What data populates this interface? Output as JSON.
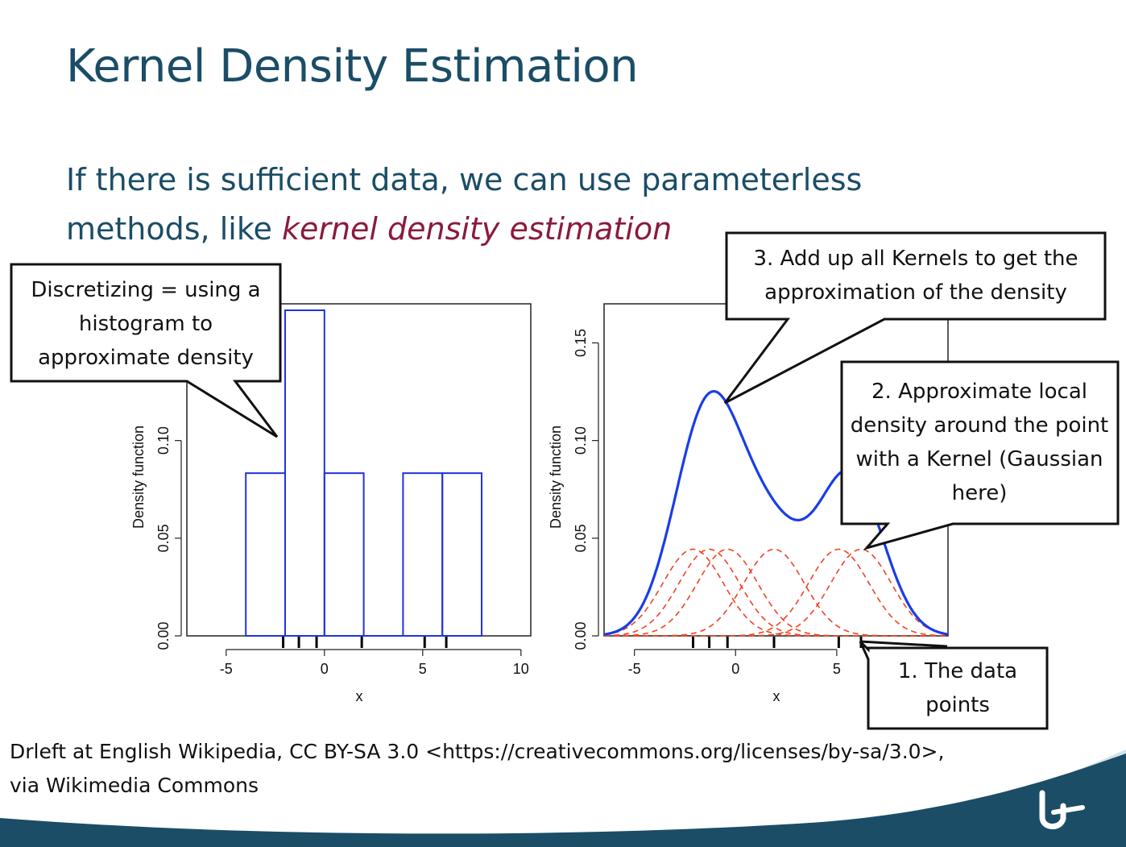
{
  "slide": {
    "title": "Kernel Density Estimation",
    "intro_plain": "If there is sufficient data, we can use parameterless methods, like ",
    "intro_emph": "kernel density estimation",
    "credit_line1": "Drleft at English Wikipedia, CC BY-SA 3.0 <https://creativecommons.org/licenses/by-sa/3.0>,",
    "credit_line2": "via Wikimedia Commons",
    "colors": {
      "title": "#1b4d66",
      "emphasis": "#8b1a3c",
      "footer": "#1b4d66"
    },
    "logo_icon": "university-logo-icon"
  },
  "callouts": {
    "histogram": "Discretizing = using a histogram to approximate density",
    "sum": "3. Add up all Kernels to get the approximation of the density",
    "kernel": "2. Approximate local density around the point with a Kernel (Gaussian here)",
    "data": "1. The data points"
  },
  "chart_data": [
    {
      "type": "bar",
      "subtype": "histogram",
      "xlabel": "x",
      "ylabel": "Density function",
      "xlim": [
        -7,
        10.5
      ],
      "ylim": [
        0,
        0.17
      ],
      "x_ticks": [
        "-5",
        "0",
        "5",
        "10"
      ],
      "y_ticks": [
        "0.00",
        "0.05",
        "0.10"
      ],
      "bins": [
        {
          "from": -4,
          "to": -2,
          "density": 0.0833
        },
        {
          "from": -2,
          "to": 0,
          "density": 0.1667
        },
        {
          "from": 0,
          "to": 2,
          "density": 0.0833
        },
        {
          "from": 2,
          "to": 4,
          "density": 0
        },
        {
          "from": 4,
          "to": 6,
          "density": 0.0833
        },
        {
          "from": 6,
          "to": 8,
          "density": 0.0833
        }
      ],
      "rug": [
        -2.1,
        -1.3,
        -0.4,
        1.9,
        5.1,
        6.2
      ],
      "color": "#2233dd"
    },
    {
      "type": "line",
      "subtype": "kernel density estimate",
      "xlabel": "x",
      "ylabel": "Density function",
      "xlim": [
        -6.5,
        10.5
      ],
      "ylim": [
        0,
        0.17
      ],
      "x_ticks": [
        "-5",
        "0",
        "5"
      ],
      "y_ticks": [
        "0.00",
        "0.05",
        "0.10",
        "0.15"
      ],
      "kernel": "gaussian",
      "bandwidth": 1.5,
      "data_points": [
        -2.1,
        -1.3,
        -0.4,
        1.9,
        5.1,
        6.2
      ],
      "series": [
        {
          "name": "",
          "style": "solid",
          "color": "#1a3de8"
        },
        {
          "name": "",
          "style": "dashed",
          "color": "#ee4422"
        }
      ]
    }
  ]
}
